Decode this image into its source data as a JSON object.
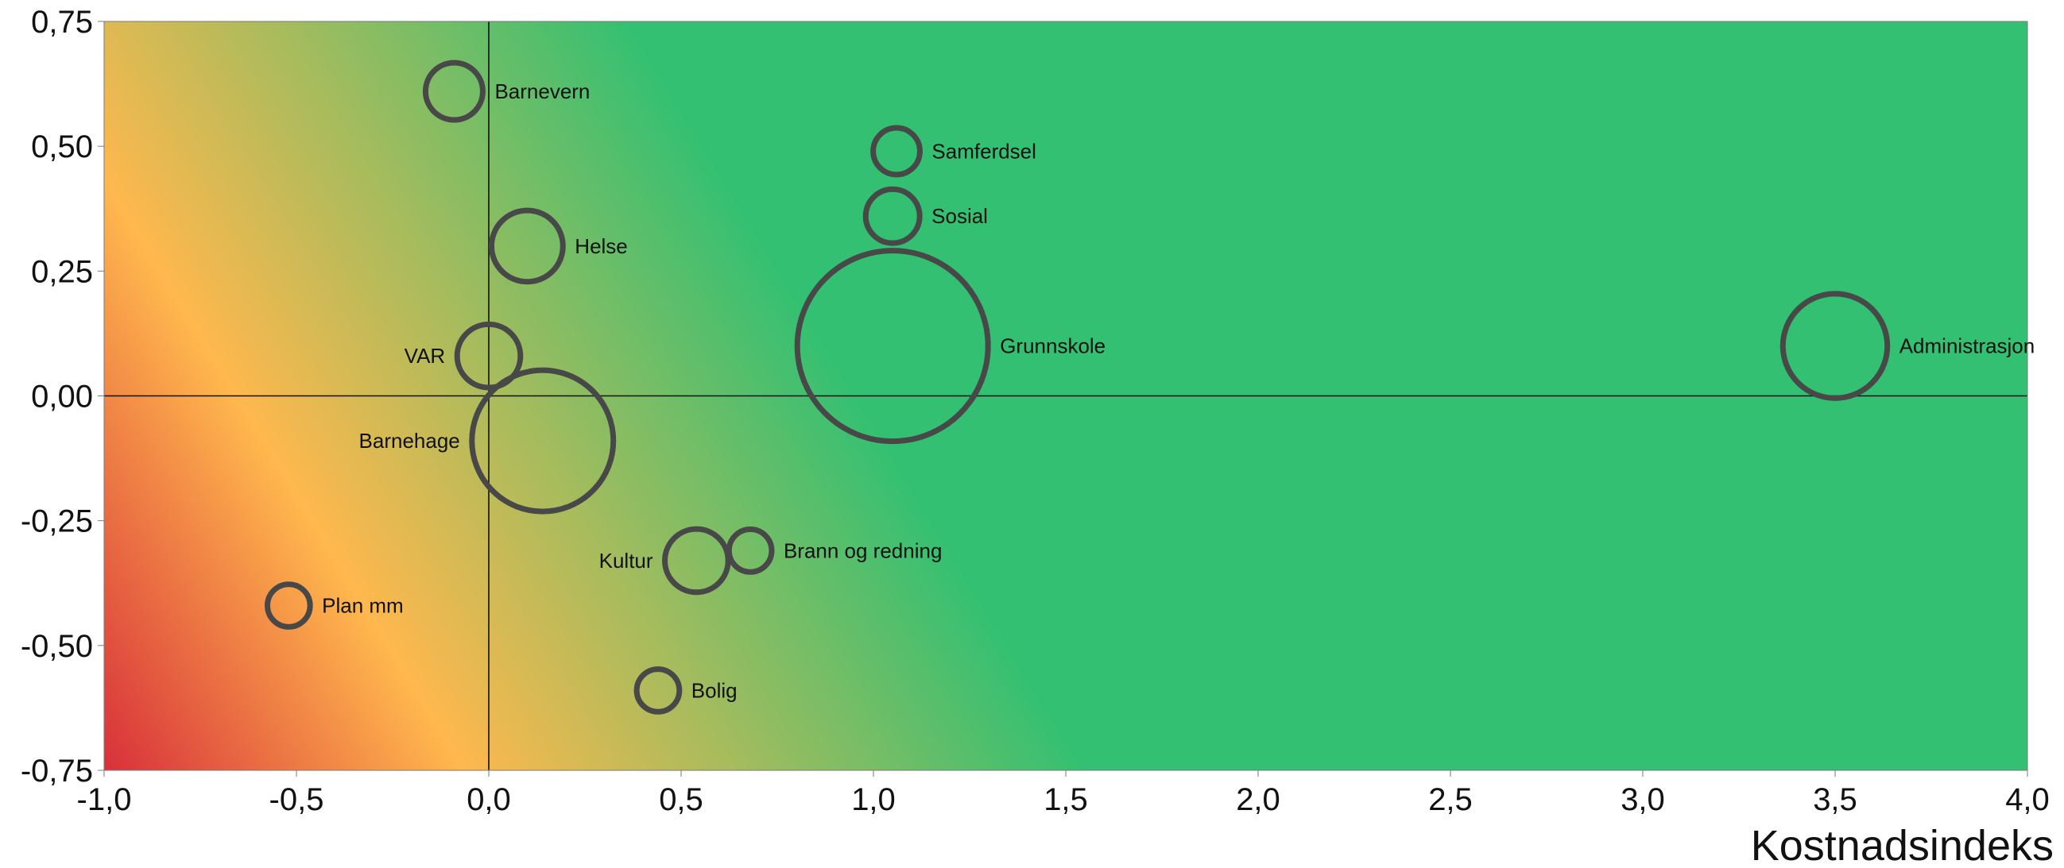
{
  "chart_data": {
    "type": "scatter",
    "title": "",
    "xlabel": "Kostnadsindeks",
    "ylabel": "",
    "xlim": [
      -1.0,
      4.0
    ],
    "ylim": [
      -0.75,
      0.75
    ],
    "grid": false,
    "legend": "none",
    "x_ticks": [
      "-1,0",
      "-0,5",
      "0,0",
      "0,5",
      "1,0",
      "1,5",
      "2,0",
      "2,5",
      "3,0",
      "3,5",
      "4,0"
    ],
    "y_ticks": [
      "0,75",
      "0,50",
      "0,25",
      "0,00",
      "-0,25",
      "-0,50",
      "-0,75"
    ],
    "background_gradient": [
      "#d8303a",
      "#ffb84d",
      "#33c072"
    ],
    "bubble_color": "#484848",
    "points": [
      {
        "label": "Barnevern",
        "x": -0.09,
        "y": 0.61,
        "size": 0.09,
        "label_side": "right"
      },
      {
        "label": "Samferdsel",
        "x": 1.06,
        "y": 0.49,
        "size": 0.06,
        "label_side": "right"
      },
      {
        "label": "Sosial",
        "x": 1.05,
        "y": 0.36,
        "size": 0.08,
        "label_side": "right"
      },
      {
        "label": "Helse",
        "x": 0.1,
        "y": 0.3,
        "size": 0.14,
        "label_side": "right"
      },
      {
        "label": "Grunnskole",
        "x": 1.05,
        "y": 0.1,
        "size": 1.0,
        "label_side": "right"
      },
      {
        "label": "Administrasjon",
        "x": 3.5,
        "y": 0.1,
        "size": 0.3,
        "label_side": "right"
      },
      {
        "label": "VAR",
        "x": 0.0,
        "y": 0.08,
        "size": 0.11,
        "label_side": "left"
      },
      {
        "label": "Barnehage",
        "x": 0.14,
        "y": -0.09,
        "size": 0.55,
        "label_side": "left"
      },
      {
        "label": "Brann og redning",
        "x": 0.68,
        "y": -0.31,
        "size": 0.05,
        "label_side": "right"
      },
      {
        "label": "Kultur",
        "x": 0.54,
        "y": -0.33,
        "size": 0.11,
        "label_side": "left"
      },
      {
        "label": "Plan mm",
        "x": -0.52,
        "y": -0.42,
        "size": 0.05,
        "label_side": "right"
      },
      {
        "label": "Bolig",
        "x": 0.44,
        "y": -0.59,
        "size": 0.05,
        "label_side": "right"
      }
    ]
  }
}
